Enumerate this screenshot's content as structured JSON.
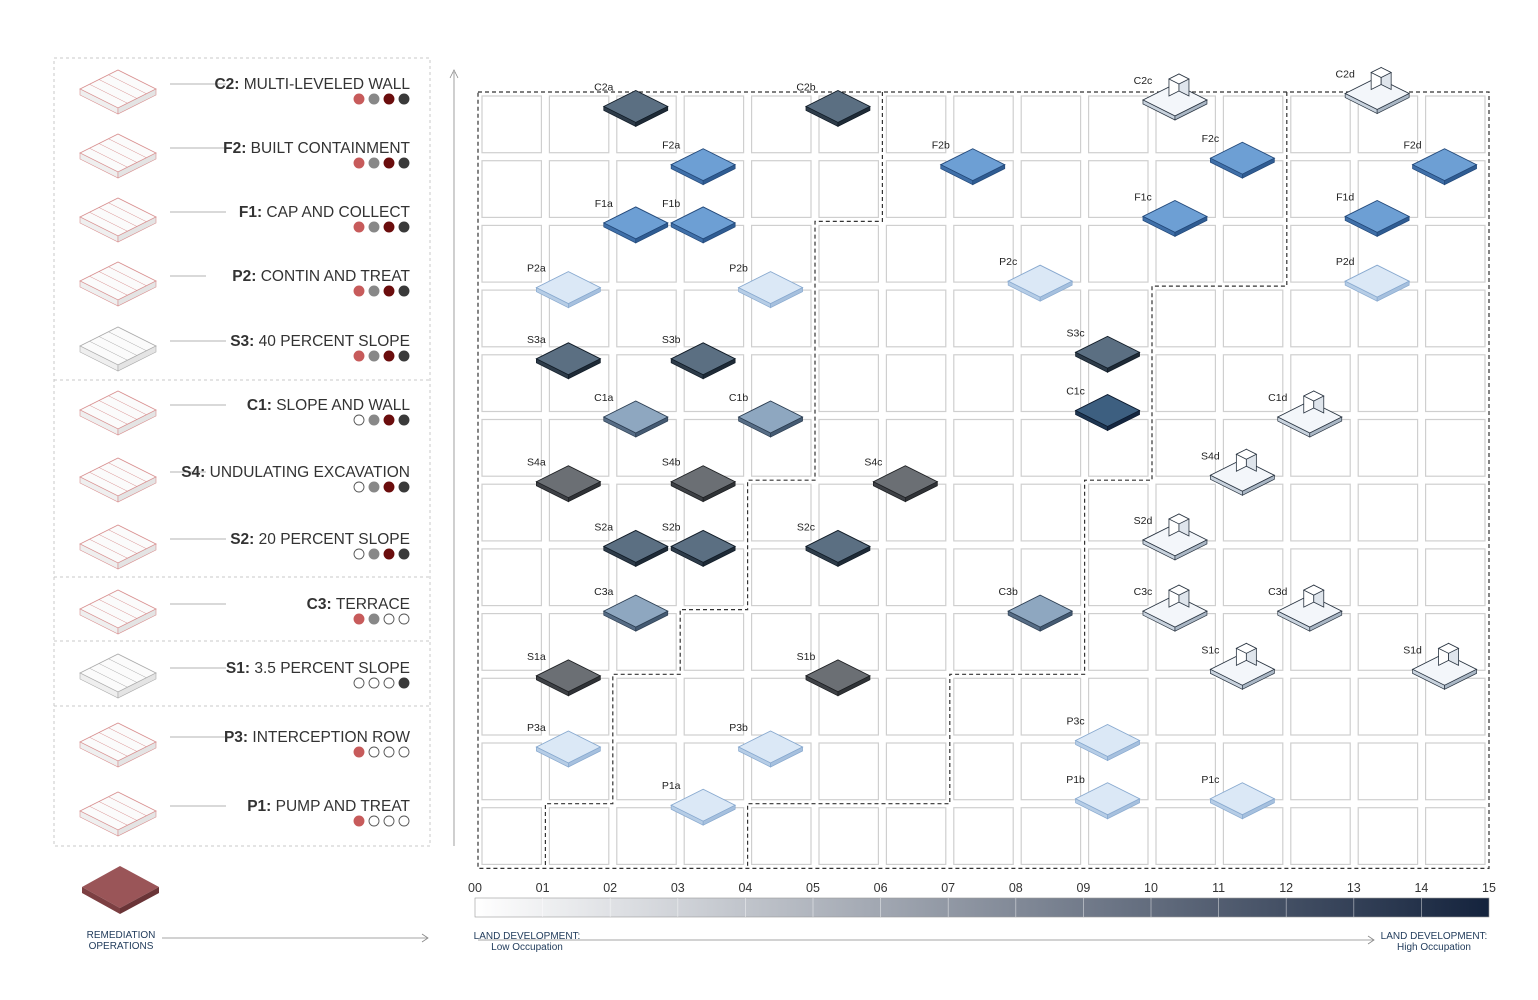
{
  "legend": {
    "items": [
      {
        "code": "C2:",
        "name": "MULTI-LEVELED WALL",
        "dots": [
          "#c75b5b",
          "#888888",
          "#6b0d0d",
          "#3a3a3a"
        ],
        "icon": "multi-level-wall-icon"
      },
      {
        "code": "F2:",
        "name": "BUILT CONTAINMENT",
        "dots": [
          "#c75b5b",
          "#888888",
          "#6b0d0d",
          "#3a3a3a"
        ],
        "icon": "built-containment-icon"
      },
      {
        "code": "F1:",
        "name": "CAP AND COLLECT",
        "dots": [
          "#c75b5b",
          "#888888",
          "#6b0d0d",
          "#3a3a3a"
        ],
        "icon": "cap-collect-icon"
      },
      {
        "code": "P2:",
        "name": "CONTIN AND TREAT",
        "dots": [
          "#c75b5b",
          "#888888",
          "#6b0d0d",
          "#3a3a3a"
        ],
        "icon": "contain-treat-icon"
      },
      {
        "code": "S3:",
        "name": "40 PERCENT SLOPE",
        "dots": [
          "#c75b5b",
          "#888888",
          "#6b0d0d",
          "#3a3a3a"
        ],
        "icon": "slope-40-icon"
      },
      {
        "code": "C1:",
        "name": "SLOPE AND WALL",
        "dots": [
          "#ffffff",
          "#888888",
          "#6b0d0d",
          "#3a3a3a"
        ],
        "icon": "slope-wall-icon"
      },
      {
        "code": "S4:",
        "name": "UNDULATING EXCAVATION",
        "dots": [
          "#ffffff",
          "#888888",
          "#6b0d0d",
          "#3a3a3a"
        ],
        "icon": "undulating-excavation-icon"
      },
      {
        "code": "S2:",
        "name": "20 PERCENT SLOPE",
        "dots": [
          "#ffffff",
          "#888888",
          "#6b0d0d",
          "#3a3a3a"
        ],
        "icon": "slope-20-icon"
      },
      {
        "code": "C3:",
        "name": "TERRACE",
        "dots": [
          "#c75b5b",
          "#888888",
          "#ffffff",
          "#ffffff"
        ],
        "icon": "terrace-icon"
      },
      {
        "code": "S1:",
        "name": "3.5 PERCENT SLOPE",
        "dots": [
          "#ffffff",
          "#ffffff",
          "#ffffff",
          "#3a3a3a"
        ],
        "icon": "slope-3-5-icon"
      },
      {
        "code": "P3:",
        "name": "INTERCEPTION ROW",
        "dots": [
          "#c75b5b",
          "#ffffff",
          "#ffffff",
          "#ffffff"
        ],
        "icon": "interception-row-icon"
      },
      {
        "code": "P1:",
        "name": "PUMP AND TREAT",
        "dots": [
          "#c75b5b",
          "#ffffff",
          "#ffffff",
          "#ffffff"
        ],
        "icon": "pump-treat-icon"
      }
    ],
    "remediation_label_1": "REMEDIATION",
    "remediation_label_2": "OPERATIONS",
    "remediation_color": "#9a5558"
  },
  "scale": {
    "ticks": [
      "00",
      "01",
      "02",
      "03",
      "04",
      "05",
      "06",
      "07",
      "08",
      "09",
      "10",
      "11",
      "12",
      "13",
      "14",
      "15"
    ],
    "low_label_1": "LAND DEVELOPMENT:",
    "low_label_2": "Low Occupation",
    "high_label_1": "LAND DEVELOPMENT:",
    "high_label_2": "High Occupation",
    "gradient_start": "#ffffff",
    "gradient_end": "#14233d"
  },
  "nodes": [
    {
      "id": "C2a",
      "style": "dark",
      "col": 1.9,
      "row": 0.1
    },
    {
      "id": "C2b",
      "style": "dark",
      "col": 4.9,
      "row": 0.1
    },
    {
      "id": "C2c",
      "style": "white",
      "col": 9.9,
      "row": 0.0
    },
    {
      "id": "C2d",
      "style": "white",
      "col": 12.9,
      "row": -0.1
    },
    {
      "id": "F2a",
      "style": "blue",
      "col": 2.9,
      "row": 1.0
    },
    {
      "id": "F2b",
      "style": "blue",
      "col": 6.9,
      "row": 1.0
    },
    {
      "id": "F2c",
      "style": "blue",
      "col": 10.9,
      "row": 0.9
    },
    {
      "id": "F2d",
      "style": "blue",
      "col": 13.9,
      "row": 1.0
    },
    {
      "id": "F1a",
      "style": "blue",
      "col": 1.9,
      "row": 1.9
    },
    {
      "id": "F1b",
      "style": "blue",
      "col": 2.9,
      "row": 1.9
    },
    {
      "id": "F1c",
      "style": "blue",
      "col": 9.9,
      "row": 1.8
    },
    {
      "id": "F1d",
      "style": "blue",
      "col": 12.9,
      "row": 1.8
    },
    {
      "id": "P2a",
      "style": "pale",
      "col": 0.9,
      "row": 2.9
    },
    {
      "id": "P2b",
      "style": "pale",
      "col": 3.9,
      "row": 2.9
    },
    {
      "id": "P2c",
      "style": "pale",
      "col": 7.9,
      "row": 2.8
    },
    {
      "id": "P2d",
      "style": "pale",
      "col": 12.9,
      "row": 2.8
    },
    {
      "id": "S3a",
      "style": "dark",
      "col": 0.9,
      "row": 4.0
    },
    {
      "id": "S3b",
      "style": "dark",
      "col": 2.9,
      "row": 4.0
    },
    {
      "id": "S3c",
      "style": "dark",
      "col": 8.9,
      "row": 3.9
    },
    {
      "id": "C1a",
      "style": "mid",
      "col": 1.9,
      "row": 4.9
    },
    {
      "id": "C1b",
      "style": "mid",
      "col": 3.9,
      "row": 4.9
    },
    {
      "id": "C1c",
      "style": "darkblue",
      "col": 8.9,
      "row": 4.8
    },
    {
      "id": "C1d",
      "style": "white",
      "col": 11.9,
      "row": 4.9
    },
    {
      "id": "S4a",
      "style": "gray",
      "col": 0.9,
      "row": 5.9
    },
    {
      "id": "S4b",
      "style": "gray",
      "col": 2.9,
      "row": 5.9
    },
    {
      "id": "S4c",
      "style": "gray",
      "col": 5.9,
      "row": 5.9
    },
    {
      "id": "S4d",
      "style": "white",
      "col": 10.9,
      "row": 5.8
    },
    {
      "id": "S2a",
      "style": "dark",
      "col": 1.9,
      "row": 6.9
    },
    {
      "id": "S2b",
      "style": "dark",
      "col": 2.9,
      "row": 6.9
    },
    {
      "id": "S2c",
      "style": "dark",
      "col": 4.9,
      "row": 6.9
    },
    {
      "id": "S2d",
      "style": "white",
      "col": 9.9,
      "row": 6.8
    },
    {
      "id": "C3a",
      "style": "mid",
      "col": 1.9,
      "row": 7.9
    },
    {
      "id": "C3b",
      "style": "mid",
      "col": 7.9,
      "row": 7.9
    },
    {
      "id": "C3c",
      "style": "white",
      "col": 9.9,
      "row": 7.9
    },
    {
      "id": "C3d",
      "style": "white",
      "col": 11.9,
      "row": 7.9
    },
    {
      "id": "S1a",
      "style": "gray",
      "col": 0.9,
      "row": 8.9
    },
    {
      "id": "S1b",
      "style": "gray",
      "col": 4.9,
      "row": 8.9
    },
    {
      "id": "S1c",
      "style": "white",
      "col": 10.9,
      "row": 8.8
    },
    {
      "id": "S1d",
      "style": "white",
      "col": 13.9,
      "row": 8.8
    },
    {
      "id": "P3a",
      "style": "pale",
      "col": 0.9,
      "row": 10.0
    },
    {
      "id": "P3b",
      "style": "pale",
      "col": 3.9,
      "row": 10.0
    },
    {
      "id": "P3c",
      "style": "pale",
      "col": 8.9,
      "row": 9.9
    },
    {
      "id": "P1a",
      "style": "pale",
      "col": 2.9,
      "row": 10.9
    },
    {
      "id": "P1b",
      "style": "pale",
      "col": 8.9,
      "row": 10.8
    },
    {
      "id": "P1c",
      "style": "pale",
      "col": 10.9,
      "row": 10.8
    }
  ]
}
